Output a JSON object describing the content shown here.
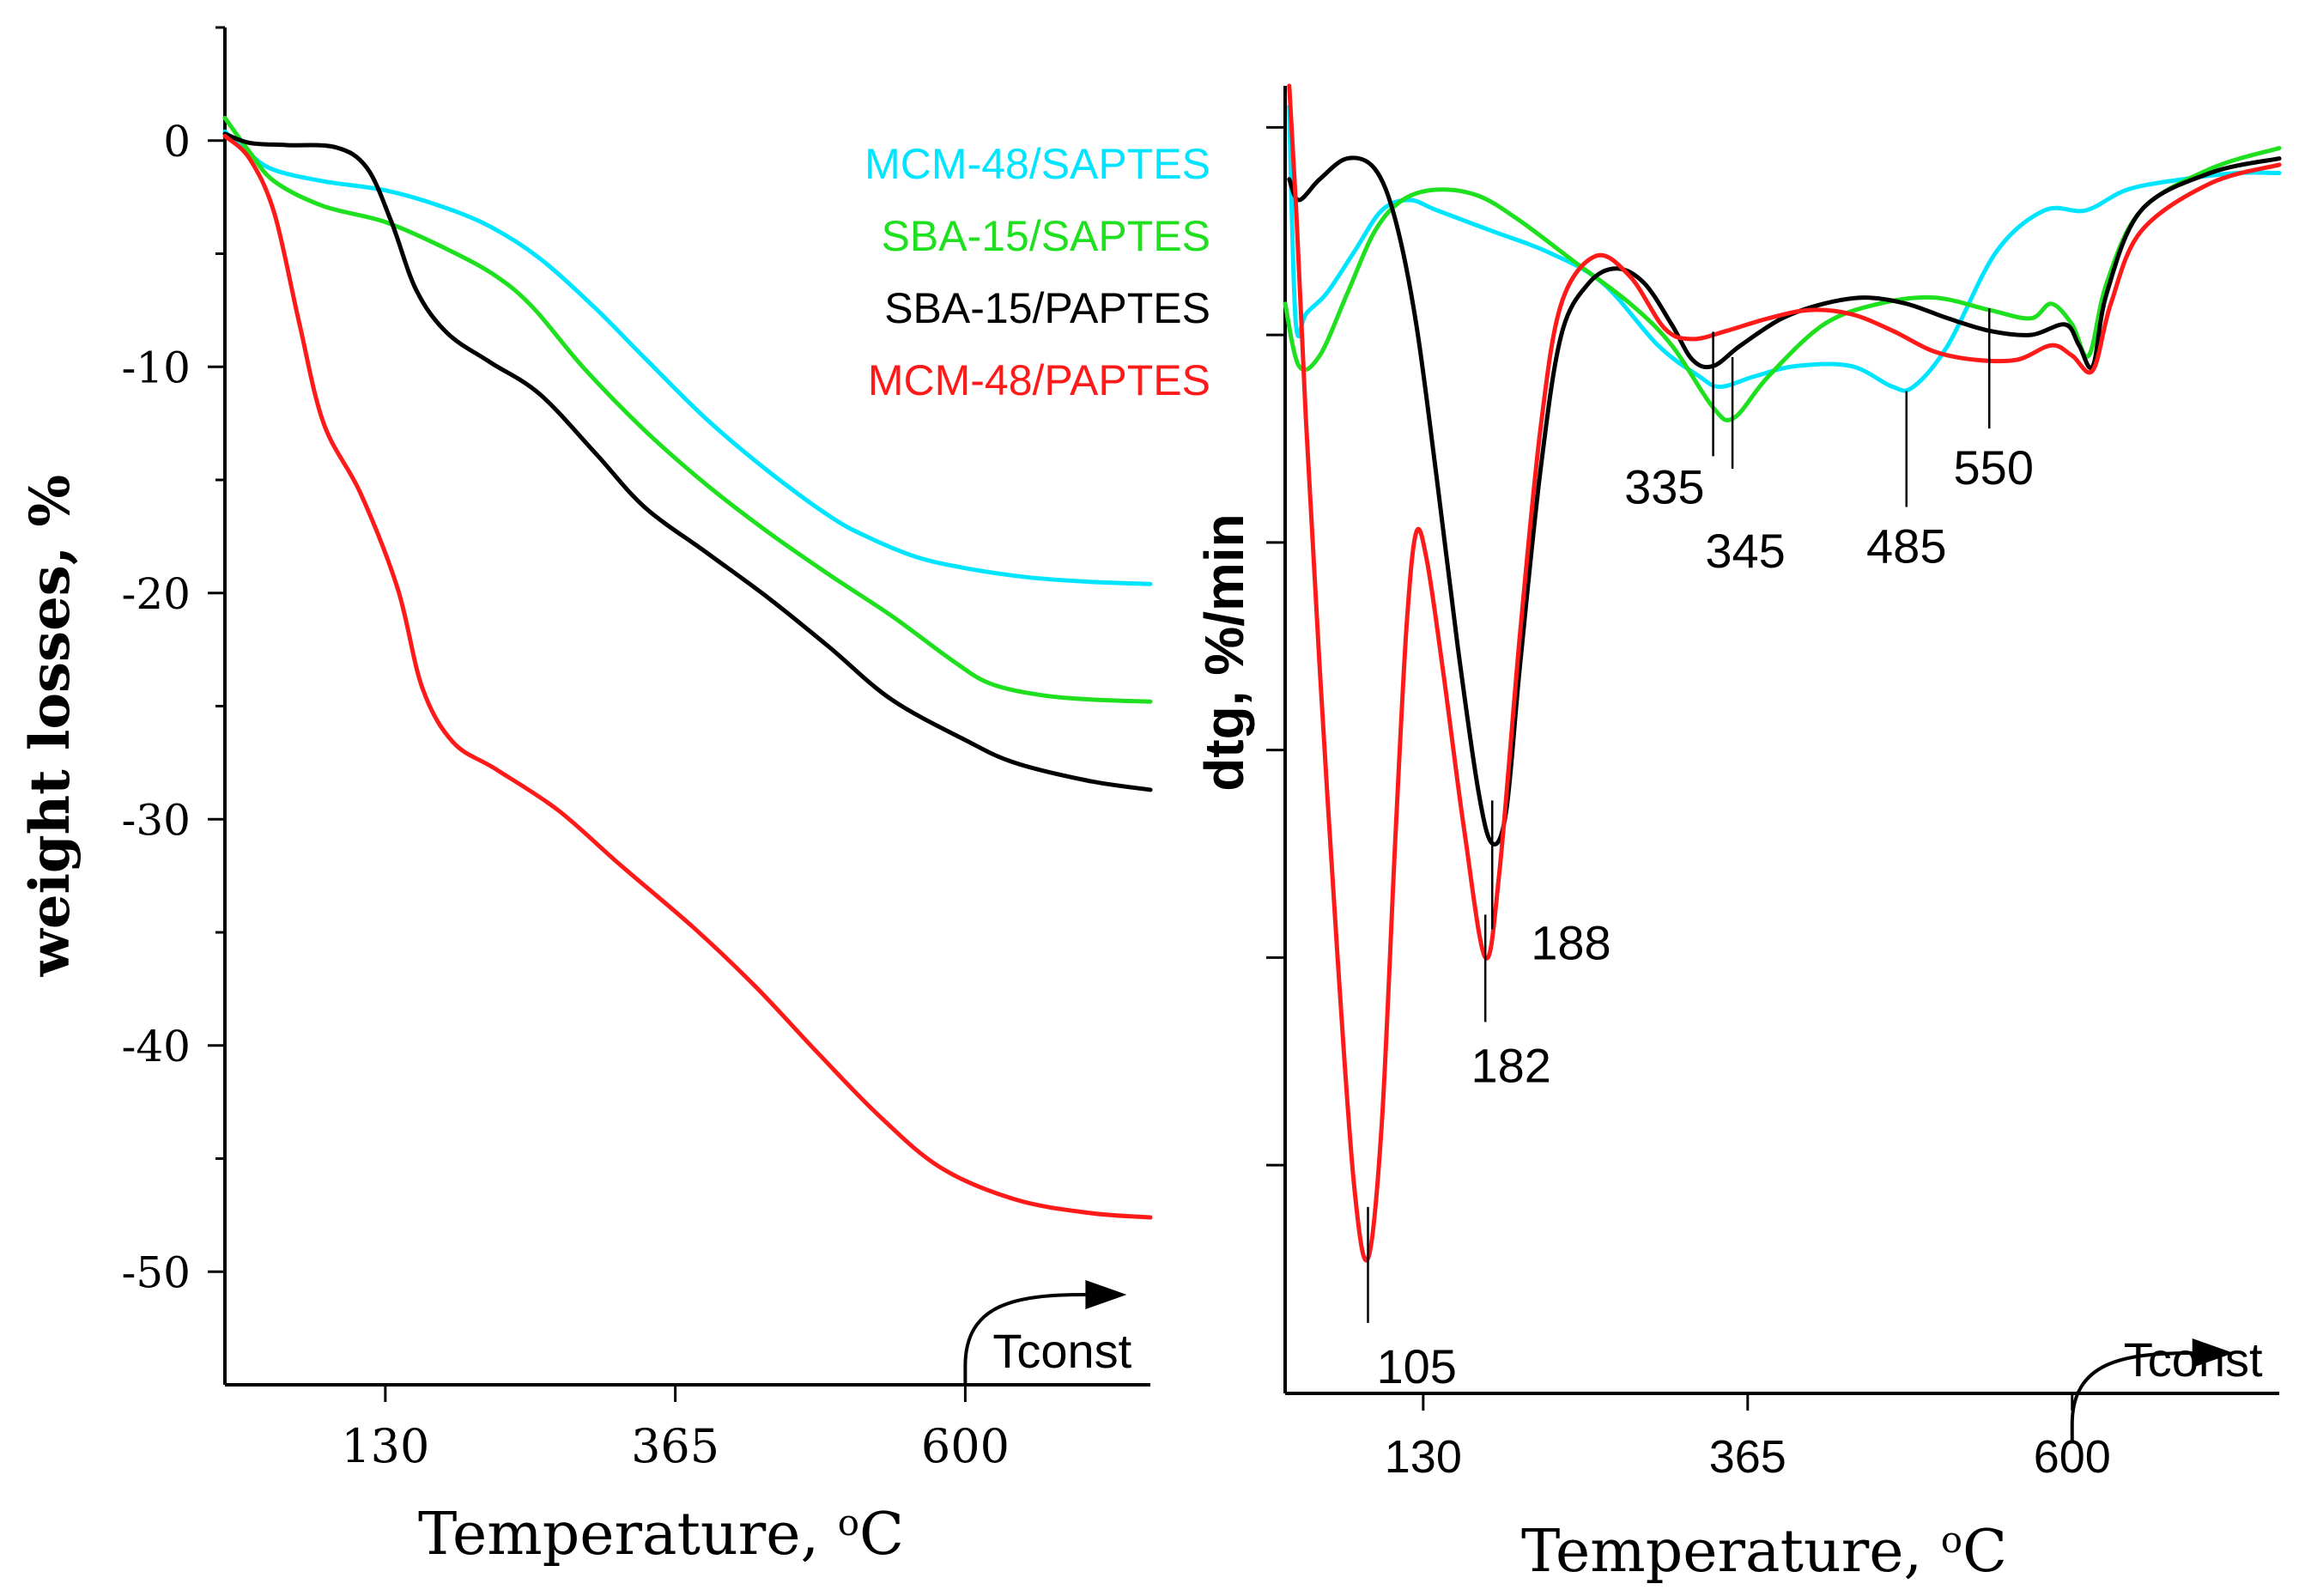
{
  "chart_data": [
    {
      "type": "line",
      "panel": "left",
      "title": "",
      "xlabel": "Temperature, ",
      "xlabel_sup": "o",
      "xlabel_unit": "C",
      "ylabel": "weight losses, %",
      "xlim": [
        0,
        750
      ],
      "ylim": [
        -55,
        5
      ],
      "xticks": [
        130,
        365,
        600
      ],
      "xtick_labels": [
        "130",
        "365",
        "600"
      ],
      "yticks": [
        0,
        -10,
        -20,
        -30,
        -40,
        -50
      ],
      "ytick_labels": [
        "0",
        "-10",
        "-20",
        "-30",
        "-40",
        "-50"
      ],
      "legend_placement": "top-right",
      "annotation": "Tconst",
      "annotation_x": 600,
      "series": [
        {
          "name": "MCM-48/SAPTES",
          "color": "#00e5ff",
          "points": [
            [
              0,
              0.4
            ],
            [
              20,
              -0.6
            ],
            [
              40,
              -1.3
            ],
            [
              80,
              -1.8
            ],
            [
              130,
              -2.2
            ],
            [
              175,
              -2.9
            ],
            [
              215,
              -3.8
            ],
            [
              255,
              -5.2
            ],
            [
              300,
              -7.4
            ],
            [
              340,
              -9.6
            ],
            [
              390,
              -12.3
            ],
            [
              440,
              -14.6
            ],
            [
              490,
              -16.6
            ],
            [
              520,
              -17.5
            ],
            [
              560,
              -18.4
            ],
            [
              600,
              -18.9
            ],
            [
              650,
              -19.3
            ],
            [
              700,
              -19.5
            ],
            [
              750,
              -19.6
            ]
          ]
        },
        {
          "name": "SBA-15/SAPTES",
          "color": "#1ee01e",
          "points": [
            [
              0,
              1.0
            ],
            [
              20,
              -0.5
            ],
            [
              40,
              -1.8
            ],
            [
              80,
              -2.9
            ],
            [
              130,
              -3.6
            ],
            [
              180,
              -4.8
            ],
            [
              220,
              -6.0
            ],
            [
              250,
              -7.4
            ],
            [
              290,
              -10.0
            ],
            [
              340,
              -12.8
            ],
            [
              390,
              -15.2
            ],
            [
              440,
              -17.3
            ],
            [
              490,
              -19.2
            ],
            [
              540,
              -21.0
            ],
            [
              590,
              -23.0
            ],
            [
              620,
              -24.0
            ],
            [
              660,
              -24.5
            ],
            [
              700,
              -24.7
            ],
            [
              750,
              -24.8
            ]
          ]
        },
        {
          "name": "SBA-15/PAPTES",
          "color": "#000000",
          "points": [
            [
              0,
              0.3
            ],
            [
              20,
              -0.1
            ],
            [
              50,
              -0.2
            ],
            [
              90,
              -0.3
            ],
            [
              115,
              -1.2
            ],
            [
              135,
              -3.6
            ],
            [
              155,
              -6.6
            ],
            [
              180,
              -8.5
            ],
            [
              215,
              -9.8
            ],
            [
              255,
              -11.2
            ],
            [
              300,
              -13.8
            ],
            [
              340,
              -16.2
            ],
            [
              390,
              -18.2
            ],
            [
              440,
              -20.2
            ],
            [
              490,
              -22.4
            ],
            [
              540,
              -24.7
            ],
            [
              600,
              -26.5
            ],
            [
              640,
              -27.5
            ],
            [
              700,
              -28.3
            ],
            [
              750,
              -28.7
            ]
          ]
        },
        {
          "name": "MCM-48/PAPTES",
          "color": "#ff1a1a",
          "points": [
            [
              0,
              0.2
            ],
            [
              20,
              -0.8
            ],
            [
              40,
              -3.2
            ],
            [
              60,
              -8.0
            ],
            [
              80,
              -12.5
            ],
            [
              110,
              -15.6
            ],
            [
              140,
              -19.8
            ],
            [
              160,
              -24.2
            ],
            [
              185,
              -26.6
            ],
            [
              220,
              -27.8
            ],
            [
              270,
              -29.6
            ],
            [
              320,
              -32.0
            ],
            [
              380,
              -34.8
            ],
            [
              430,
              -37.4
            ],
            [
              480,
              -40.3
            ],
            [
              530,
              -43.1
            ],
            [
              580,
              -45.4
            ],
            [
              640,
              -46.8
            ],
            [
              700,
              -47.4
            ],
            [
              750,
              -47.6
            ]
          ]
        }
      ]
    },
    {
      "type": "line",
      "panel": "right",
      "title": "",
      "xlabel": "Temperature, ",
      "xlabel_sup": "o",
      "xlabel_unit": "C",
      "ylabel": "dtg, %/min",
      "xlim": [
        30,
        750
      ],
      "ylim": [
        -6.1,
        0.2
      ],
      "xticks": [
        130,
        365,
        600
      ],
      "xtick_labels": [
        "130",
        "365",
        "600"
      ],
      "annotation": "Tconst",
      "annotation_x": 600,
      "peak_labels": [
        {
          "label": "105",
          "x": 90,
          "series": "MCM-48/PAPTES"
        },
        {
          "label": "182",
          "x": 175,
          "series": "MCM-48/PAPTES"
        },
        {
          "label": "188",
          "x": 180,
          "series": "SBA-15/PAPTES"
        },
        {
          "label": "335",
          "x": 340,
          "series": "SBA-15/PAPTES"
        },
        {
          "label": "345",
          "x": 354,
          "series": "SBA-15/SAPTES"
        },
        {
          "label": "485",
          "x": 480,
          "series": "MCM-48/SAPTES"
        },
        {
          "label": "550",
          "x": 540,
          "series": "MCM-48/PAPTES"
        }
      ],
      "series": [
        {
          "name": "MCM-48/SAPTES",
          "color": "#00e5ff",
          "points": [
            [
              33,
              0.1
            ],
            [
              36,
              -0.7
            ],
            [
              39,
              -1.0
            ],
            [
              45,
              -0.9
            ],
            [
              60,
              -0.8
            ],
            [
              80,
              -0.6
            ],
            [
              100,
              -0.4
            ],
            [
              120,
              -0.35
            ],
            [
              140,
              -0.4
            ],
            [
              180,
              -0.5
            ],
            [
              220,
              -0.6
            ],
            [
              260,
              -0.75
            ],
            [
              300,
              -1.05
            ],
            [
              330,
              -1.2
            ],
            [
              345,
              -1.25
            ],
            [
              370,
              -1.2
            ],
            [
              400,
              -1.15
            ],
            [
              440,
              -1.15
            ],
            [
              470,
              -1.25
            ],
            [
              485,
              -1.25
            ],
            [
              510,
              -1.05
            ],
            [
              545,
              -0.6
            ],
            [
              580,
              -0.4
            ],
            [
              610,
              -0.4
            ],
            [
              640,
              -0.3
            ],
            [
              680,
              -0.25
            ],
            [
              720,
              -0.22
            ],
            [
              750,
              -0.22
            ]
          ]
        },
        {
          "name": "SBA-15/SAPTES",
          "color": "#1ee01e",
          "points": [
            [
              30,
              -0.85
            ],
            [
              40,
              -1.15
            ],
            [
              55,
              -1.1
            ],
            [
              75,
              -0.8
            ],
            [
              95,
              -0.5
            ],
            [
              115,
              -0.35
            ],
            [
              140,
              -0.3
            ],
            [
              170,
              -0.33
            ],
            [
              200,
              -0.45
            ],
            [
              240,
              -0.65
            ],
            [
              280,
              -0.85
            ],
            [
              310,
              -1.05
            ],
            [
              340,
              -1.35
            ],
            [
              355,
              -1.4
            ],
            [
              380,
              -1.2
            ],
            [
              420,
              -0.95
            ],
            [
              460,
              -0.85
            ],
            [
              500,
              -0.82
            ],
            [
              540,
              -0.88
            ],
            [
              570,
              -0.92
            ],
            [
              585,
              -0.85
            ],
            [
              600,
              -0.95
            ],
            [
              612,
              -1.1
            ],
            [
              625,
              -0.75
            ],
            [
              650,
              -0.4
            ],
            [
              700,
              -0.2
            ],
            [
              750,
              -0.1
            ]
          ]
        },
        {
          "name": "SBA-15/PAPTES",
          "color": "#000000",
          "points": [
            [
              33,
              -0.25
            ],
            [
              40,
              -0.35
            ],
            [
              55,
              -0.25
            ],
            [
              75,
              -0.15
            ],
            [
              95,
              -0.2
            ],
            [
              110,
              -0.45
            ],
            [
              125,
              -0.95
            ],
            [
              140,
              -1.7
            ],
            [
              155,
              -2.5
            ],
            [
              170,
              -3.2
            ],
            [
              180,
              -3.45
            ],
            [
              190,
              -3.3
            ],
            [
              200,
              -2.6
            ],
            [
              215,
              -1.65
            ],
            [
              230,
              -1.0
            ],
            [
              250,
              -0.75
            ],
            [
              270,
              -0.68
            ],
            [
              290,
              -0.75
            ],
            [
              310,
              -0.95
            ],
            [
              325,
              -1.12
            ],
            [
              340,
              -1.15
            ],
            [
              360,
              -1.05
            ],
            [
              390,
              -0.92
            ],
            [
              420,
              -0.85
            ],
            [
              450,
              -0.82
            ],
            [
              480,
              -0.85
            ],
            [
              510,
              -0.92
            ],
            [
              540,
              -0.98
            ],
            [
              570,
              -1.0
            ],
            [
              595,
              -0.95
            ],
            [
              605,
              -1.05
            ],
            [
              615,
              -1.15
            ],
            [
              625,
              -0.8
            ],
            [
              650,
              -0.4
            ],
            [
              700,
              -0.22
            ],
            [
              750,
              -0.15
            ]
          ]
        },
        {
          "name": "MCM-48/PAPTES",
          "color": "#ff1a1a",
          "points": [
            [
              33,
              0.2
            ],
            [
              38,
              -0.4
            ],
            [
              45,
              -1.4
            ],
            [
              55,
              -2.6
            ],
            [
              68,
              -4.0
            ],
            [
              80,
              -5.1
            ],
            [
              90,
              -5.45
            ],
            [
              100,
              -4.8
            ],
            [
              110,
              -3.4
            ],
            [
              118,
              -2.4
            ],
            [
              125,
              -1.95
            ],
            [
              133,
              -2.1
            ],
            [
              145,
              -2.65
            ],
            [
              160,
              -3.4
            ],
            [
              175,
              -4.0
            ],
            [
              185,
              -3.6
            ],
            [
              200,
              -2.45
            ],
            [
              215,
              -1.45
            ],
            [
              230,
              -0.85
            ],
            [
              255,
              -0.62
            ],
            [
              280,
              -0.72
            ],
            [
              305,
              -0.97
            ],
            [
              325,
              -1.02
            ],
            [
              350,
              -0.98
            ],
            [
              380,
              -0.92
            ],
            [
              410,
              -0.88
            ],
            [
              440,
              -0.9
            ],
            [
              470,
              -0.98
            ],
            [
              500,
              -1.08
            ],
            [
              530,
              -1.12
            ],
            [
              560,
              -1.12
            ],
            [
              585,
              -1.05
            ],
            [
              600,
              -1.1
            ],
            [
              615,
              -1.17
            ],
            [
              628,
              -0.85
            ],
            [
              650,
              -0.5
            ],
            [
              700,
              -0.27
            ],
            [
              750,
              -0.18
            ]
          ]
        }
      ]
    }
  ]
}
